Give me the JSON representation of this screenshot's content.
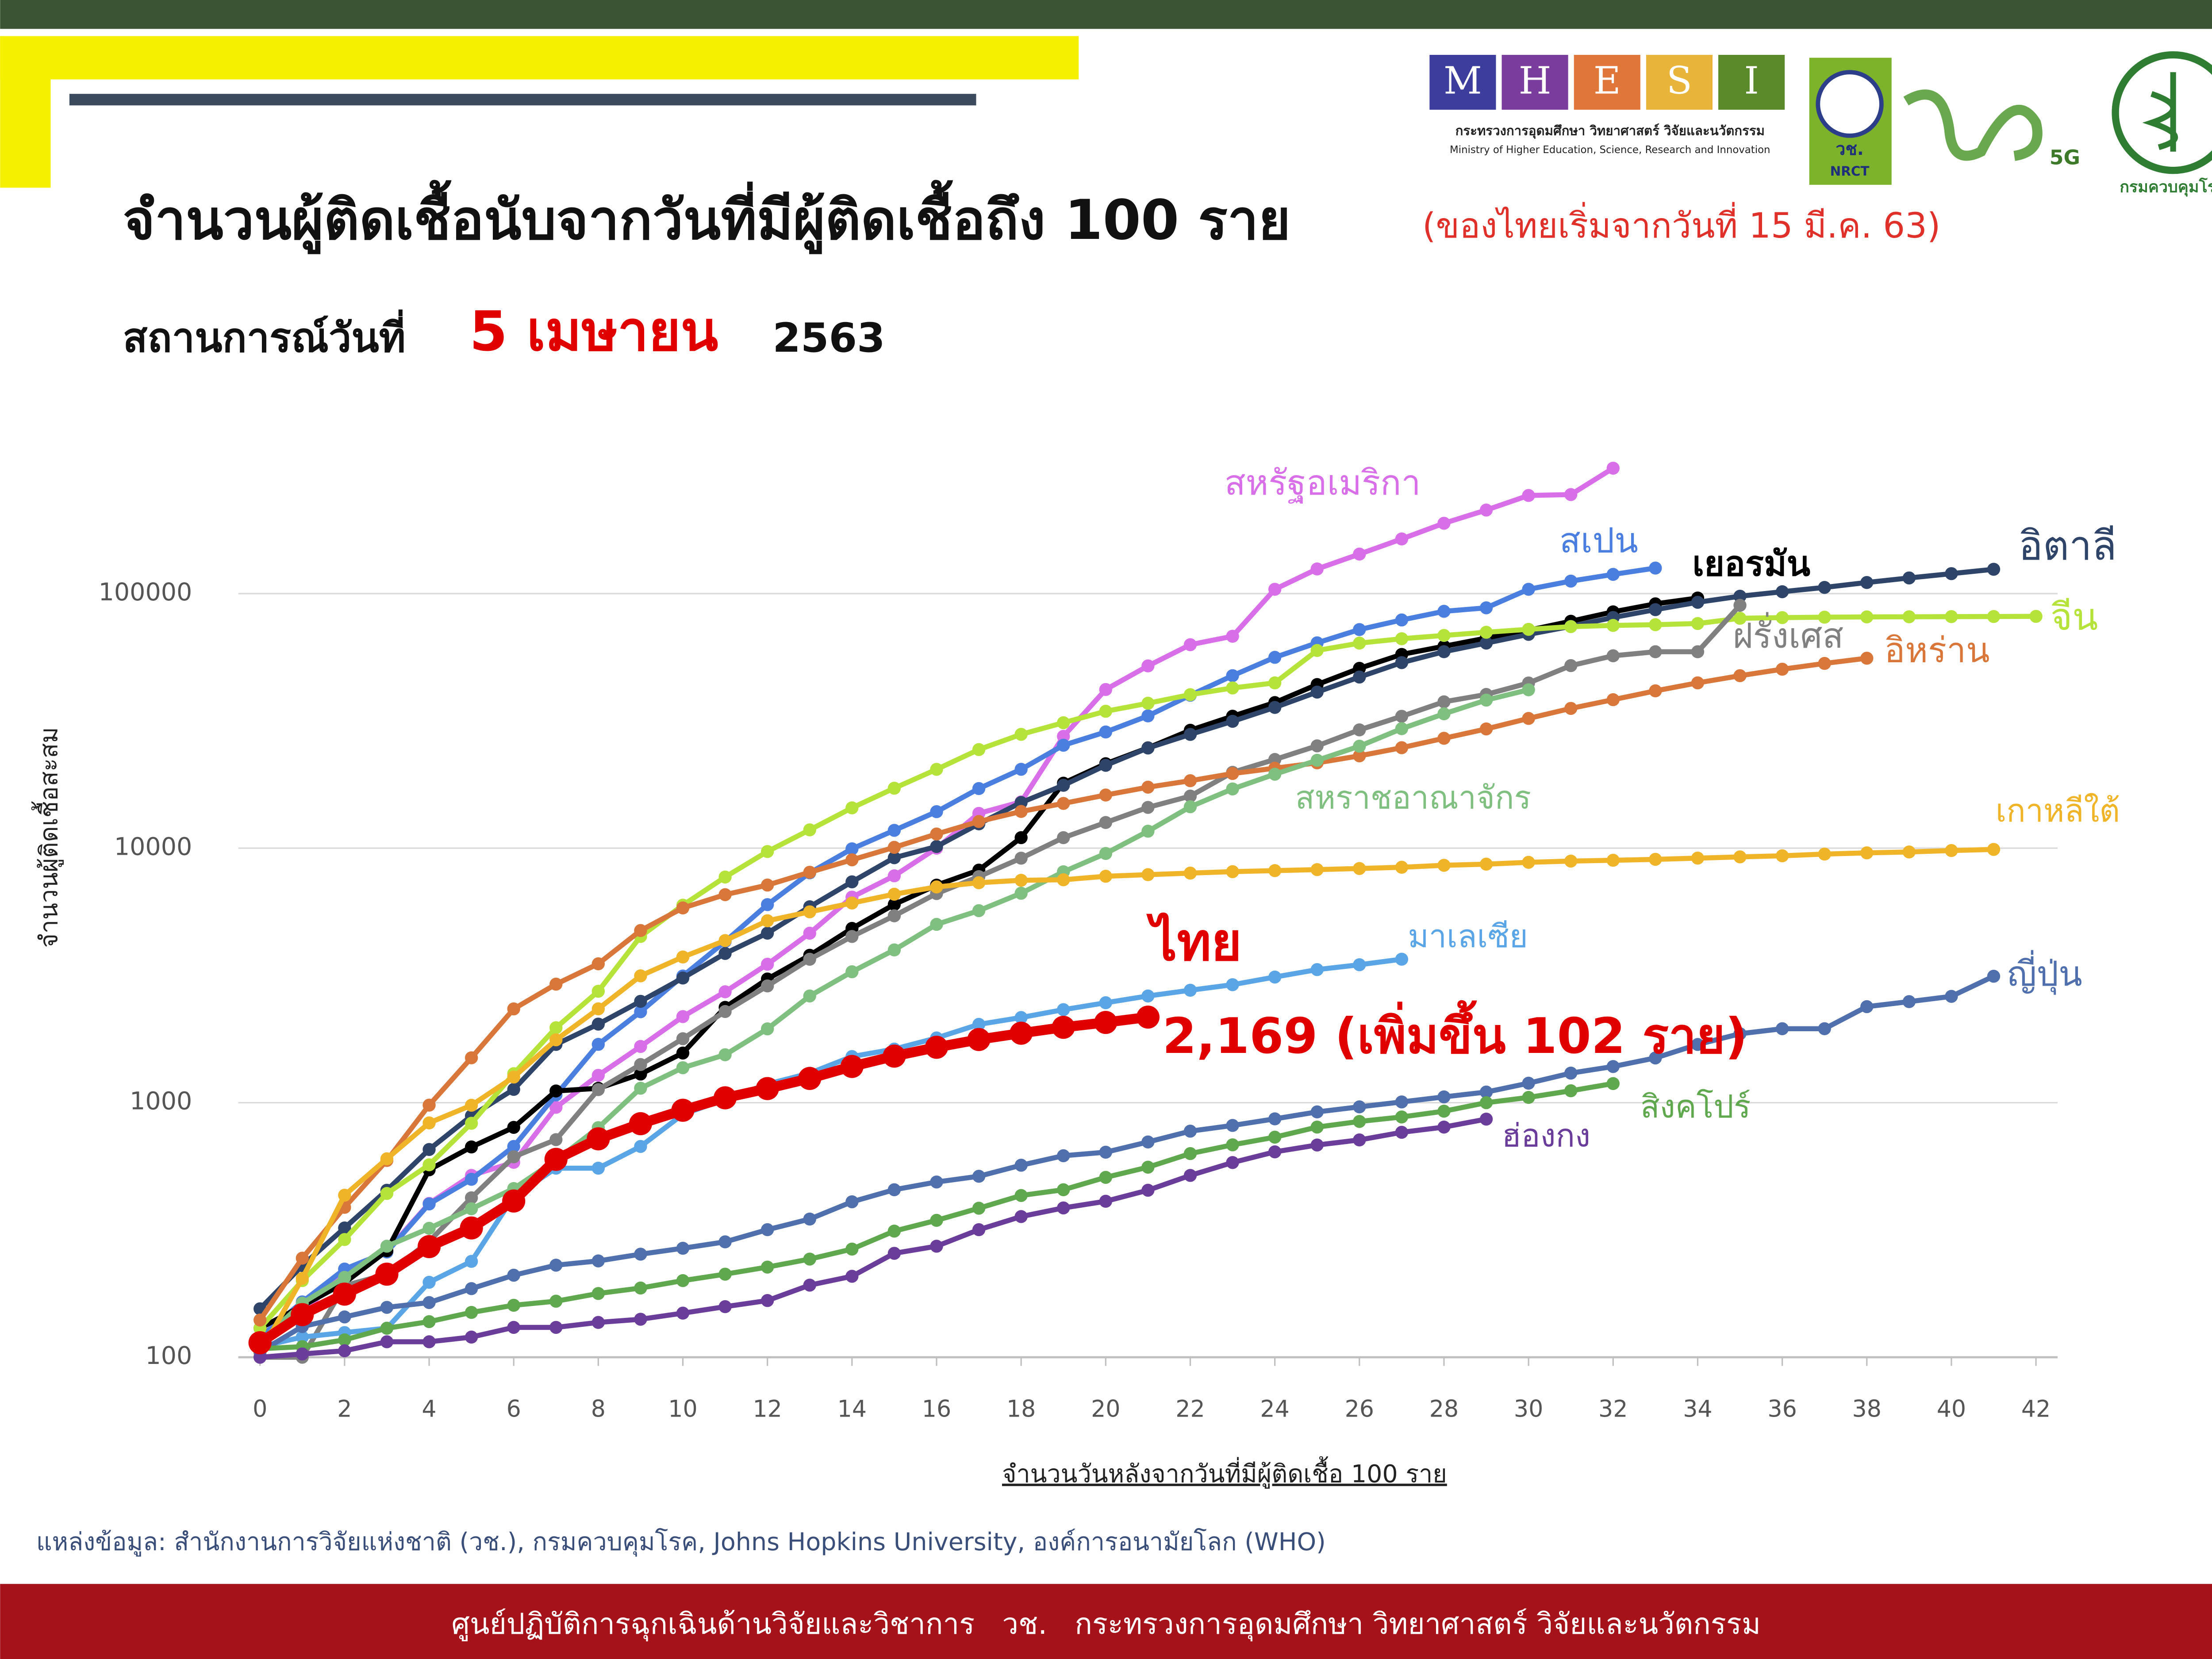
{
  "header": {
    "title": "จำนวนผู้ติดเชื้อนับจากวันที่มีผู้ติดเชื้อถึง 100 ราย",
    "title_note": "(ของไทยเริ่มจากวันที่ 15 มี.ค. 63)",
    "status_label": "สถานการณ์วันที่",
    "status_date": "5 เมษายน",
    "status_year": "2563"
  },
  "logos": {
    "mhesi_letters": [
      "M",
      "H",
      "E",
      "S",
      "I"
    ],
    "mhesi_th": "กระทรวงการอุดมศึกษา วิทยาศาสตร์ วิจัยและนวัตกรรม",
    "mhesi_en": "Ministry of Higher Education, Science, Research and Innovation",
    "nrct_th": "วช.",
    "nrct_en": "NRCT",
    "fiveg": "5G",
    "ddc": "กรมควบคุมโรค"
  },
  "chart_data": {
    "type": "line",
    "log_y": true,
    "grid": true,
    "y_label": "จำนวนผู้ติดเชื้อสะสม",
    "x_label": "จำนวนวันหลังจากวันที่มีผู้ติดเชื้อ 100 ราย",
    "xlim": [
      0,
      42
    ],
    "xticks": [
      0,
      2,
      4,
      6,
      8,
      10,
      12,
      14,
      16,
      18,
      20,
      22,
      24,
      26,
      28,
      30,
      32,
      34,
      36,
      38,
      40,
      42
    ],
    "ylim": [
      100,
      400000
    ],
    "yticks": [
      100,
      1000,
      10000,
      100000
    ],
    "x": [
      0,
      1,
      2,
      3,
      4,
      5,
      6,
      7,
      8,
      9,
      10,
      11,
      12,
      13,
      14,
      15,
      16,
      17,
      18,
      19,
      20,
      21,
      22,
      23,
      24,
      25,
      26,
      27,
      28,
      29,
      30,
      31,
      32,
      33,
      34,
      35,
      36,
      37,
      38,
      39,
      40,
      41,
      42
    ],
    "series": [
      {
        "name": "สหรัฐอเมริกา",
        "color": "#d86ee8",
        "values": [
          118,
          149,
          217,
          262,
          402,
          518,
          583,
          959,
          1281,
          1663,
          2179,
          2727,
          3499,
          4632,
          6421,
          7786,
          10000,
          13700,
          15200,
          27500,
          42000,
          52000,
          63000,
          68000,
          104000,
          125000,
          143000,
          164000,
          189000,
          213000,
          243000,
          245000,
          311000,
          null,
          null,
          null,
          null,
          null,
          null,
          null,
          null,
          null,
          null
        ]
      },
      {
        "name": "สเปน",
        "color": "#4a7fe0",
        "values": [
          120,
          165,
          222,
          259,
          400,
          500,
          673,
          1073,
          1695,
          2277,
          3146,
          4300,
          6000,
          8000,
          9942,
          11748,
          13910,
          17147,
          20410,
          25374,
          28603,
          33089,
          39885,
          47610,
          56188,
          64059,
          72248,
          78797,
          85195,
          87956,
          104000,
          112000,
          119000,
          126000,
          null,
          null,
          null,
          null,
          null,
          null,
          null,
          null,
          null
        ]
      },
      {
        "name": "เยอรมัน",
        "color": "#000000",
        "values": [
          130,
          159,
          196,
          262,
          545,
          670,
          800,
          1112,
          1139,
          1296,
          1567,
          2369,
          3062,
          3795,
          4838,
          6012,
          7156,
          8198,
          10999,
          18000,
          21463,
          24774,
          29056,
          32986,
          37323,
          43938,
          50871,
          57695,
          62095,
          66885,
          71808,
          77872,
          84794,
          91159,
          96092,
          null,
          null,
          null,
          null,
          null,
          null,
          null,
          null
        ]
      },
      {
        "name": "อิตาลี",
        "color": "#2e4468",
        "values": [
          155,
          229,
          322,
          453,
          655,
          888,
          1128,
          1694,
          2036,
          2502,
          3089,
          3858,
          4636,
          5883,
          7375,
          9172,
          10149,
          12462,
          15113,
          17660,
          21157,
          24747,
          27980,
          31506,
          35713,
          41035,
          47021,
          53578,
          59138,
          63927,
          69176,
          74386,
          80589,
          86498,
          92472,
          97689,
          101739,
          105792,
          110574,
          115242,
          119827,
          124632,
          null
        ]
      },
      {
        "name": "จีน",
        "color": "#b5e33a",
        "values": [
          130,
          200,
          290,
          440,
          570,
          830,
          1300,
          1970,
          2740,
          4500,
          5970,
          7700,
          9700,
          11800,
          14400,
          17200,
          20400,
          24400,
          28000,
          31100,
          34500,
          37100,
          40100,
          42600,
          44600,
          59800,
          63900,
          66500,
          68500,
          70500,
          72400,
          74200,
          75000,
          75500,
          76300,
          80000,
          80500,
          80800,
          81000,
          81100,
          81200,
          81300,
          81400
        ]
      },
      {
        "name": "ฝรั่งเศส",
        "color": "#808080",
        "values": [
          100,
          100,
          191,
          212,
          285,
          423,
          613,
          716,
          1126,
          1412,
          1784,
          2281,
          2876,
          3661,
          4499,
          5423,
          6633,
          7730,
          9134,
          10995,
          12612,
          14459,
          16018,
          19856,
          22304,
          25233,
          29155,
          32964,
          37575,
          40174,
          44550,
          52128,
          56989,
          59105,
          59105,
          89953,
          null,
          null,
          null,
          null,
          null,
          null,
          null
        ]
      },
      {
        "name": "อิหร่าน",
        "color": "#d9773a",
        "values": [
          140,
          245,
          388,
          593,
          978,
          1501,
          2336,
          2922,
          3513,
          4747,
          5823,
          6566,
          7161,
          8042,
          9000,
          10075,
          11364,
          12729,
          13938,
          14991,
          16169,
          17361,
          18407,
          19644,
          20610,
          21638,
          23049,
          24811,
          27017,
          29406,
          32332,
          35408,
          38309,
          41495,
          44605,
          47593,
          50468,
          53183,
          55743,
          null,
          null,
          null,
          null
        ]
      },
      {
        "name": "สหราชอาณาจักร",
        "color": "#7fbf7f",
        "values": [
          115,
          163,
          206,
          273,
          321,
          383,
          460,
          594,
          798,
          1140,
          1372,
          1543,
          1950,
          2626,
          3269,
          3983,
          5018,
          5683,
          6650,
          8077,
          9529,
          11658,
          14543,
          17089,
          19522,
          22141,
          25150,
          29474,
          33718,
          38168,
          41903,
          null,
          null,
          null,
          null,
          null,
          null,
          null,
          null,
          null,
          null,
          null,
          null
        ]
      },
      {
        "name": "เกาหลีใต้",
        "color": "#f0b429",
        "values": [
          104,
          204,
          433,
          602,
          833,
          977,
          1261,
          1766,
          2337,
          3150,
          3736,
          4335,
          5186,
          5621,
          6088,
          6593,
          7041,
          7314,
          7478,
          7513,
          7755,
          7869,
          7979,
          8086,
          8162,
          8236,
          8320,
          8413,
          8565,
          8652,
          8799,
          8897,
          8961,
          9037,
          9137,
          9241,
          9332,
          9478,
          9583,
          9661,
          9786,
          9887,
          null
        ]
      },
      {
        "name": "มาเลเซีย",
        "color": "#5aa5e6",
        "values": [
          110,
          120,
          125,
          130,
          197,
          238,
          428,
          553,
          553,
          673,
          900,
          1030,
          1183,
          1306,
          1518,
          1624,
          1796,
          2031,
          2161,
          2320,
          2470,
          2626,
          2766,
          2908,
          3116,
          3333,
          3483,
          3662,
          null,
          null,
          null,
          null,
          null,
          null,
          null,
          null,
          null,
          null,
          null,
          null,
          null,
          null,
          null
        ]
      },
      {
        "name": "ญี่ปุ่น",
        "color": "#4f6fad",
        "values": [
          105,
          132,
          144,
          157,
          164,
          186,
          210,
          230,
          239,
          254,
          268,
          284,
          317,
          349,
          408,
          455,
          488,
          514,
          568,
          619,
          639,
          701,
          773,
          814,
          864,
          920,
          963,
          1007,
          1054,
          1101,
          1193,
          1307,
          1387,
          1499,
          1693,
          1866,
          1953,
          1953,
          2384,
          2495,
          2617,
          3139,
          null
        ]
      },
      {
        "name": "สิงคโปร์",
        "color": "#5fa84e",
        "values": [
          108,
          110,
          117,
          130,
          138,
          150,
          160,
          166,
          178,
          187,
          200,
          212,
          226,
          243,
          266,
          313,
          345,
          385,
          432,
          455,
          509,
          558,
          631,
          683,
          732,
          802,
          844,
          879,
          926,
          1000,
          1049,
          1114,
          1189,
          null,
          null,
          null,
          null,
          null,
          null,
          null,
          null,
          null,
          null
        ]
      },
      {
        "name": "ฮ่องกง",
        "color": "#6a3d9a",
        "values": [
          100,
          103,
          106,
          115,
          115,
          120,
          131,
          131,
          137,
          141,
          149,
          158,
          167,
          192,
          208,
          256,
          273,
          317,
          357,
          386,
          410,
          453,
          518,
          582,
          641,
          682,
          714,
          765,
          802,
          862,
          null,
          null,
          null,
          null,
          null,
          null,
          null,
          null,
          null,
          null,
          null,
          null,
          null
        ]
      },
      {
        "name": "ไทย",
        "color": "#e00000",
        "values": [
          114,
          147,
          177,
          212,
          272,
          322,
          411,
          599,
          721,
          827,
          934,
          1045,
          1136,
          1245,
          1388,
          1524,
          1651,
          1771,
          1875,
          1978,
          2067,
          2169,
          null,
          null,
          null,
          null,
          null,
          null,
          null,
          null,
          null,
          null,
          null,
          null,
          null,
          null,
          null,
          null,
          null,
          null,
          null,
          null,
          null
        ]
      }
    ],
    "annotation": "2,169 (เพิ่มขึ้น 102 ราย)"
  },
  "source": "แหล่งข้อมูล: สำนักงานการวิจัยแห่งชาติ (วช.), กรมควบคุมโรค, Johns Hopkins University, องค์การอนามัยโลก (WHO)",
  "footer": "ศูนย์ปฏิบัติการฉุกเฉินด้านวิจัยและวิชาการ   วช.   กระทรวงการอุดมศึกษา วิทยาศาสตร์ วิจัยและนวัตกรรม"
}
